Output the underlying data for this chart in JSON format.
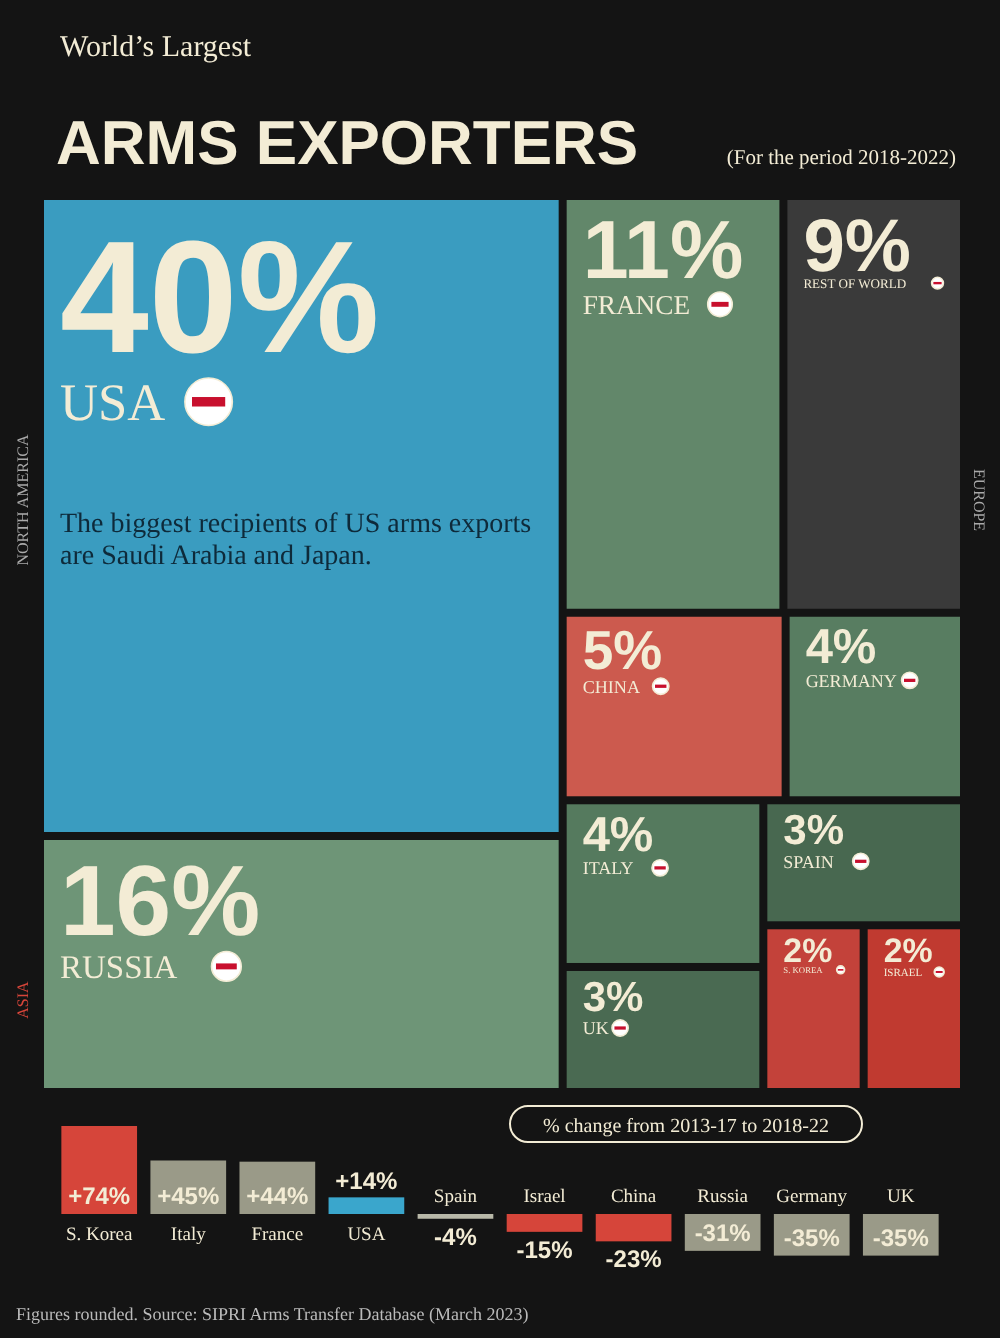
{
  "chart_data": [
    {
      "type": "other",
      "subtitle": "World’s Largest",
      "title": "ARMS EXPORTERS",
      "categories": [
        "USA",
        "RUSSIA",
        "FRANCE",
        "REST OF WORLD",
        "CHINA",
        "GERMANY",
        "ITALY",
        "UK",
        "SPAIN",
        "S. KOREA",
        "ISRAEL"
      ],
      "values": [
        40,
        16,
        11,
        9,
        5,
        4,
        4,
        3,
        3,
        2,
        2
      ],
      "value_labels": [
        "40%",
        "16%",
        "11%",
        "9%",
        "5%",
        "4%",
        "4%",
        "3%",
        "3%",
        "2%",
        "2%"
      ],
      "colors": [
        "#3a9cc0",
        "#6e9577",
        "#62876a",
        "#3a3a3a",
        "#cc5a4e",
        "#587d61",
        "#557a5e",
        "#4a6a52",
        "#486850",
        "#c3423a",
        "#c03a30"
      ],
      "annotations": [
        "(For the period 2018-2022)",
        "The biggest recipients of US arms exports are Saudi Arabia and Japan.",
        "NORTH AMERICA",
        "EUROPE",
        "ASIA"
      ]
    },
    {
      "type": "bar",
      "title": "% change from 2013-17 to 2018-22",
      "categories": [
        "S. Korea",
        "Italy",
        "France",
        "USA",
        "Spain",
        "Israel",
        "China",
        "Russia",
        "Germany",
        "UK"
      ],
      "values": [
        74,
        45,
        44,
        14,
        -4,
        -15,
        -23,
        -31,
        -35,
        -35
      ],
      "value_labels": [
        "+74%",
        "+45%",
        "+44%",
        "+14%",
        "-4%",
        "-15%",
        "-23%",
        "-31%",
        "-35%",
        "-35%"
      ],
      "colors": [
        "#d6453a",
        "#9a9a88",
        "#9a9a88",
        "#3aa6cc",
        "#b8b8a8",
        "#d6453a",
        "#d6453a",
        "#9a9a88",
        "#9a9a88",
        "#9a9a88"
      ],
      "annotations": [
        "Figures rounded. Source: SIPRI Arms Transfer Database (March 2023)"
      ]
    }
  ]
}
